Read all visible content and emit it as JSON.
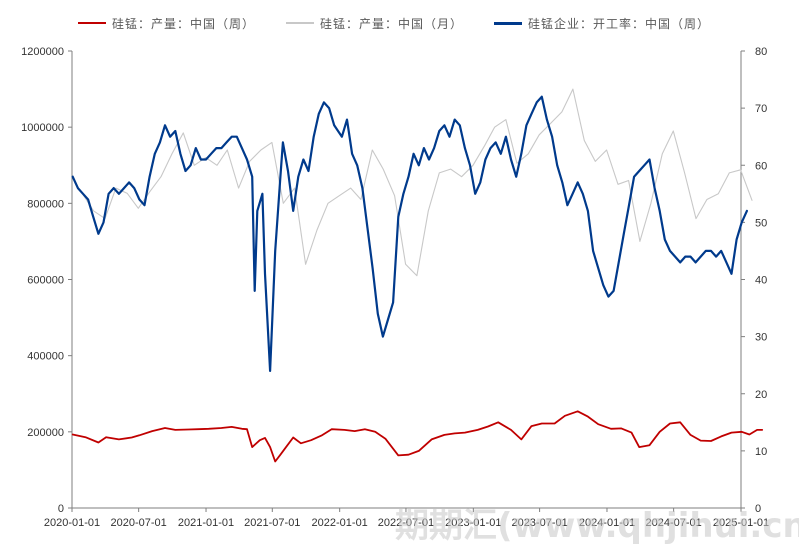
{
  "legend": [
    {
      "label": "硅锰：产量：中国（周）",
      "color": "#c00000"
    },
    {
      "label": "硅锰：产量：中国（月）",
      "color": "#c8c8c8"
    },
    {
      "label": "硅锰企业：开工率：中国（周）",
      "color": "#003a8c"
    }
  ],
  "watermark": "期期汇(www.qhjihui.cn)",
  "chart_data": {
    "type": "line",
    "title": "",
    "x_ticks": [
      "2020-01-01",
      "2020-07-01",
      "2021-01-01",
      "2021-07-01",
      "2022-01-01",
      "2022-07-01",
      "2023-01-01",
      "2023-07-01",
      "2024-01-01",
      "2024-07-01",
      "2025-01-01"
    ],
    "x_range": [
      "2020-01-01",
      "2025-01-01"
    ],
    "y_left": {
      "range": [
        0,
        1200000
      ],
      "ticks": [
        0,
        200000,
        400000,
        600000,
        800000,
        1000000,
        1200000
      ]
    },
    "y_right": {
      "range": [
        0,
        80
      ],
      "ticks": [
        0,
        10,
        20,
        30,
        40,
        50,
        60,
        70,
        80
      ]
    },
    "grid": false,
    "legend_position": "top",
    "series": [
      {
        "name": "硅锰：产量：中国（周）",
        "axis": "left",
        "color": "#c00000",
        "points": [
          [
            "2020-01-03",
            193000
          ],
          [
            "2020-02-07",
            186000
          ],
          [
            "2020-03-13",
            172000
          ],
          [
            "2020-04-03",
            186000
          ],
          [
            "2020-05-08",
            180000
          ],
          [
            "2020-06-12",
            185000
          ],
          [
            "2020-07-03",
            191000
          ],
          [
            "2020-08-07",
            202000
          ],
          [
            "2020-09-11",
            210000
          ],
          [
            "2020-10-09",
            205000
          ],
          [
            "2020-11-13",
            206000
          ],
          [
            "2020-12-11",
            207000
          ],
          [
            "2021-01-08",
            208000
          ],
          [
            "2021-02-12",
            210000
          ],
          [
            "2021-03-12",
            213000
          ],
          [
            "2021-04-09",
            208000
          ],
          [
            "2021-04-23",
            207000
          ],
          [
            "2021-05-07",
            160000
          ],
          [
            "2021-05-28",
            178000
          ],
          [
            "2021-06-11",
            184000
          ],
          [
            "2021-06-25",
            160000
          ],
          [
            "2021-07-09",
            122000
          ],
          [
            "2021-07-23",
            140000
          ],
          [
            "2021-08-06",
            158000
          ],
          [
            "2021-08-27",
            185000
          ],
          [
            "2021-09-17",
            170000
          ],
          [
            "2021-10-15",
            178000
          ],
          [
            "2021-11-12",
            190000
          ],
          [
            "2021-12-10",
            207000
          ],
          [
            "2022-01-14",
            205000
          ],
          [
            "2022-02-11",
            202000
          ],
          [
            "2022-03-11",
            207000
          ],
          [
            "2022-04-08",
            200000
          ],
          [
            "2022-05-06",
            182000
          ],
          [
            "2022-06-10",
            138000
          ],
          [
            "2022-07-08",
            140000
          ],
          [
            "2022-08-05",
            150000
          ],
          [
            "2022-09-09",
            180000
          ],
          [
            "2022-10-14",
            192000
          ],
          [
            "2022-11-11",
            196000
          ],
          [
            "2022-12-09",
            198000
          ],
          [
            "2023-01-13",
            205000
          ],
          [
            "2023-02-10",
            214000
          ],
          [
            "2023-03-10",
            225000
          ],
          [
            "2023-04-14",
            205000
          ],
          [
            "2023-05-12",
            180000
          ],
          [
            "2023-06-09",
            215000
          ],
          [
            "2023-07-07",
            222000
          ],
          [
            "2023-08-11",
            222000
          ],
          [
            "2023-09-08",
            242000
          ],
          [
            "2023-10-13",
            254000
          ],
          [
            "2023-11-10",
            240000
          ],
          [
            "2023-12-08",
            220000
          ],
          [
            "2024-01-12",
            208000
          ],
          [
            "2024-02-09",
            209000
          ],
          [
            "2024-03-08",
            198000
          ],
          [
            "2024-03-29",
            160000
          ],
          [
            "2024-04-26",
            165000
          ],
          [
            "2024-05-24",
            200000
          ],
          [
            "2024-06-21",
            222000
          ],
          [
            "2024-07-19",
            225000
          ],
          [
            "2024-08-16",
            192000
          ],
          [
            "2024-09-13",
            177000
          ],
          [
            "2024-10-11",
            176000
          ],
          [
            "2024-11-08",
            188000
          ],
          [
            "2024-12-06",
            198000
          ],
          [
            "2025-01-03",
            200000
          ],
          [
            "2025-01-24",
            193000
          ],
          [
            "2025-02-14",
            205000
          ],
          [
            "2025-02-28",
            205000
          ]
        ]
      },
      {
        "name": "硅锰：产量：中国（月）",
        "axis": "left",
        "color": "#c8c8c8",
        "points": [
          [
            "2020-01-31",
            823000
          ],
          [
            "2020-02-29",
            780000
          ],
          [
            "2020-03-31",
            760000
          ],
          [
            "2020-04-30",
            840000
          ],
          [
            "2020-05-31",
            826000
          ],
          [
            "2020-06-30",
            787000
          ],
          [
            "2020-07-31",
            830000
          ],
          [
            "2020-08-31",
            870000
          ],
          [
            "2020-09-30",
            930000
          ],
          [
            "2020-10-31",
            985000
          ],
          [
            "2020-11-30",
            900000
          ],
          [
            "2020-12-31",
            920000
          ],
          [
            "2021-01-31",
            900000
          ],
          [
            "2021-02-28",
            940000
          ],
          [
            "2021-03-31",
            840000
          ],
          [
            "2021-04-30",
            910000
          ],
          [
            "2021-05-31",
            940000
          ],
          [
            "2021-06-30",
            960000
          ],
          [
            "2021-07-31",
            800000
          ],
          [
            "2021-08-31",
            840000
          ],
          [
            "2021-09-30",
            640000
          ],
          [
            "2021-10-31",
            730000
          ],
          [
            "2021-11-30",
            800000
          ],
          [
            "2021-12-31",
            820000
          ],
          [
            "2022-01-31",
            840000
          ],
          [
            "2022-02-28",
            810000
          ],
          [
            "2022-03-31",
            940000
          ],
          [
            "2022-04-30",
            890000
          ],
          [
            "2022-05-31",
            820000
          ],
          [
            "2022-06-30",
            640000
          ],
          [
            "2022-07-31",
            610000
          ],
          [
            "2022-08-31",
            780000
          ],
          [
            "2022-09-30",
            880000
          ],
          [
            "2022-10-31",
            890000
          ],
          [
            "2022-11-30",
            870000
          ],
          [
            "2022-12-31",
            900000
          ],
          [
            "2023-01-31",
            950000
          ],
          [
            "2023-02-28",
            1000000
          ],
          [
            "2023-03-31",
            1020000
          ],
          [
            "2023-04-30",
            905000
          ],
          [
            "2023-05-31",
            930000
          ],
          [
            "2023-06-30",
            980000
          ],
          [
            "2023-07-31",
            1010000
          ],
          [
            "2023-08-31",
            1040000
          ],
          [
            "2023-09-30",
            1100000
          ],
          [
            "2023-10-31",
            965000
          ],
          [
            "2023-11-30",
            910000
          ],
          [
            "2023-12-31",
            940000
          ],
          [
            "2024-01-31",
            850000
          ],
          [
            "2024-02-29",
            860000
          ],
          [
            "2024-03-31",
            700000
          ],
          [
            "2024-04-30",
            800000
          ],
          [
            "2024-05-31",
            930000
          ],
          [
            "2024-06-30",
            990000
          ],
          [
            "2024-07-31",
            880000
          ],
          [
            "2024-08-31",
            760000
          ],
          [
            "2024-09-30",
            810000
          ],
          [
            "2024-10-31",
            825000
          ],
          [
            "2024-11-30",
            880000
          ],
          [
            "2024-12-31",
            888000
          ],
          [
            "2025-01-31",
            808000
          ]
        ]
      },
      {
        "name": "硅锰企业：开工率：中国（周）",
        "axis": "right",
        "color": "#003a8c",
        "points": [
          [
            "2020-01-03",
            58
          ],
          [
            "2020-01-17",
            56
          ],
          [
            "2020-01-31",
            55
          ],
          [
            "2020-02-14",
            54
          ],
          [
            "2020-02-28",
            51
          ],
          [
            "2020-03-13",
            48
          ],
          [
            "2020-03-27",
            50
          ],
          [
            "2020-04-10",
            55
          ],
          [
            "2020-04-24",
            56
          ],
          [
            "2020-05-08",
            55
          ],
          [
            "2020-05-22",
            56
          ],
          [
            "2020-06-05",
            57
          ],
          [
            "2020-06-19",
            56
          ],
          [
            "2020-07-03",
            54
          ],
          [
            "2020-07-17",
            53
          ],
          [
            "2020-07-31",
            58
          ],
          [
            "2020-08-14",
            62
          ],
          [
            "2020-08-28",
            64
          ],
          [
            "2020-09-11",
            67
          ],
          [
            "2020-09-25",
            65
          ],
          [
            "2020-10-09",
            66
          ],
          [
            "2020-10-23",
            62
          ],
          [
            "2020-11-06",
            59
          ],
          [
            "2020-11-20",
            60
          ],
          [
            "2020-12-04",
            63
          ],
          [
            "2020-12-18",
            61
          ],
          [
            "2021-01-01",
            61
          ],
          [
            "2021-01-15",
            62
          ],
          [
            "2021-01-29",
            63
          ],
          [
            "2021-02-12",
            63
          ],
          [
            "2021-02-26",
            64
          ],
          [
            "2021-03-12",
            65
          ],
          [
            "2021-03-26",
            65
          ],
          [
            "2021-04-09",
            63
          ],
          [
            "2021-04-23",
            61
          ],
          [
            "2021-05-07",
            58
          ],
          [
            "2021-05-14",
            38
          ],
          [
            "2021-05-21",
            52
          ],
          [
            "2021-06-04",
            55
          ],
          [
            "2021-06-11",
            41
          ],
          [
            "2021-06-25",
            24
          ],
          [
            "2021-07-09",
            45
          ],
          [
            "2021-07-23",
            58
          ],
          [
            "2021-07-30",
            64
          ],
          [
            "2021-08-13",
            59
          ],
          [
            "2021-08-27",
            52
          ],
          [
            "2021-09-10",
            58
          ],
          [
            "2021-09-24",
            61
          ],
          [
            "2021-10-08",
            59
          ],
          [
            "2021-10-22",
            65
          ],
          [
            "2021-11-05",
            69
          ],
          [
            "2021-11-19",
            71
          ],
          [
            "2021-12-03",
            70
          ],
          [
            "2021-12-17",
            67
          ],
          [
            "2022-01-07",
            65
          ],
          [
            "2022-01-21",
            68
          ],
          [
            "2022-02-04",
            62
          ],
          [
            "2022-02-18",
            60
          ],
          [
            "2022-03-04",
            56
          ],
          [
            "2022-03-18",
            49
          ],
          [
            "2022-04-01",
            42
          ],
          [
            "2022-04-15",
            34
          ],
          [
            "2022-04-29",
            30
          ],
          [
            "2022-05-13",
            33
          ],
          [
            "2022-05-27",
            36
          ],
          [
            "2022-06-10",
            51
          ],
          [
            "2022-06-24",
            55
          ],
          [
            "2022-07-08",
            58
          ],
          [
            "2022-07-22",
            62
          ],
          [
            "2022-08-05",
            60
          ],
          [
            "2022-08-19",
            63
          ],
          [
            "2022-09-02",
            61
          ],
          [
            "2022-09-16",
            63
          ],
          [
            "2022-09-30",
            66
          ],
          [
            "2022-10-14",
            67
          ],
          [
            "2022-10-28",
            65
          ],
          [
            "2022-11-11",
            68
          ],
          [
            "2022-11-25",
            67
          ],
          [
            "2022-12-09",
            63
          ],
          [
            "2022-12-23",
            60
          ],
          [
            "2023-01-06",
            55
          ],
          [
            "2023-01-20",
            57
          ],
          [
            "2023-02-03",
            61
          ],
          [
            "2023-02-17",
            63
          ],
          [
            "2023-03-03",
            64
          ],
          [
            "2023-03-17",
            62
          ],
          [
            "2023-03-31",
            65
          ],
          [
            "2023-04-14",
            61
          ],
          [
            "2023-04-28",
            58
          ],
          [
            "2023-05-12",
            62
          ],
          [
            "2023-05-26",
            67
          ],
          [
            "2023-06-09",
            69
          ],
          [
            "2023-06-23",
            71
          ],
          [
            "2023-07-07",
            72
          ],
          [
            "2023-07-21",
            68
          ],
          [
            "2023-08-04",
            65
          ],
          [
            "2023-08-18",
            60
          ],
          [
            "2023-09-01",
            57
          ],
          [
            "2023-09-15",
            53
          ],
          [
            "2023-09-29",
            55
          ],
          [
            "2023-10-13",
            57
          ],
          [
            "2023-10-27",
            55
          ],
          [
            "2023-11-10",
            52
          ],
          [
            "2023-11-24",
            45
          ],
          [
            "2023-12-08",
            42
          ],
          [
            "2023-12-22",
            39
          ],
          [
            "2024-01-05",
            37
          ],
          [
            "2024-01-19",
            38
          ],
          [
            "2024-02-02",
            43
          ],
          [
            "2024-02-16",
            48
          ],
          [
            "2024-03-01",
            53
          ],
          [
            "2024-03-15",
            58
          ],
          [
            "2024-03-29",
            59
          ],
          [
            "2024-04-12",
            60
          ],
          [
            "2024-04-26",
            61
          ],
          [
            "2024-05-10",
            56
          ],
          [
            "2024-05-24",
            52
          ],
          [
            "2024-06-07",
            47
          ],
          [
            "2024-06-21",
            45
          ],
          [
            "2024-07-05",
            44
          ],
          [
            "2024-07-19",
            43
          ],
          [
            "2024-08-02",
            44
          ],
          [
            "2024-08-16",
            44
          ],
          [
            "2024-08-30",
            43
          ],
          [
            "2024-09-13",
            44
          ],
          [
            "2024-09-27",
            45
          ],
          [
            "2024-10-11",
            45
          ],
          [
            "2024-10-25",
            44
          ],
          [
            "2024-11-08",
            45
          ],
          [
            "2024-11-22",
            43
          ],
          [
            "2024-12-06",
            41
          ],
          [
            "2024-12-20",
            47
          ],
          [
            "2025-01-03",
            50
          ],
          [
            "2025-01-17",
            52
          ]
        ]
      }
    ]
  }
}
